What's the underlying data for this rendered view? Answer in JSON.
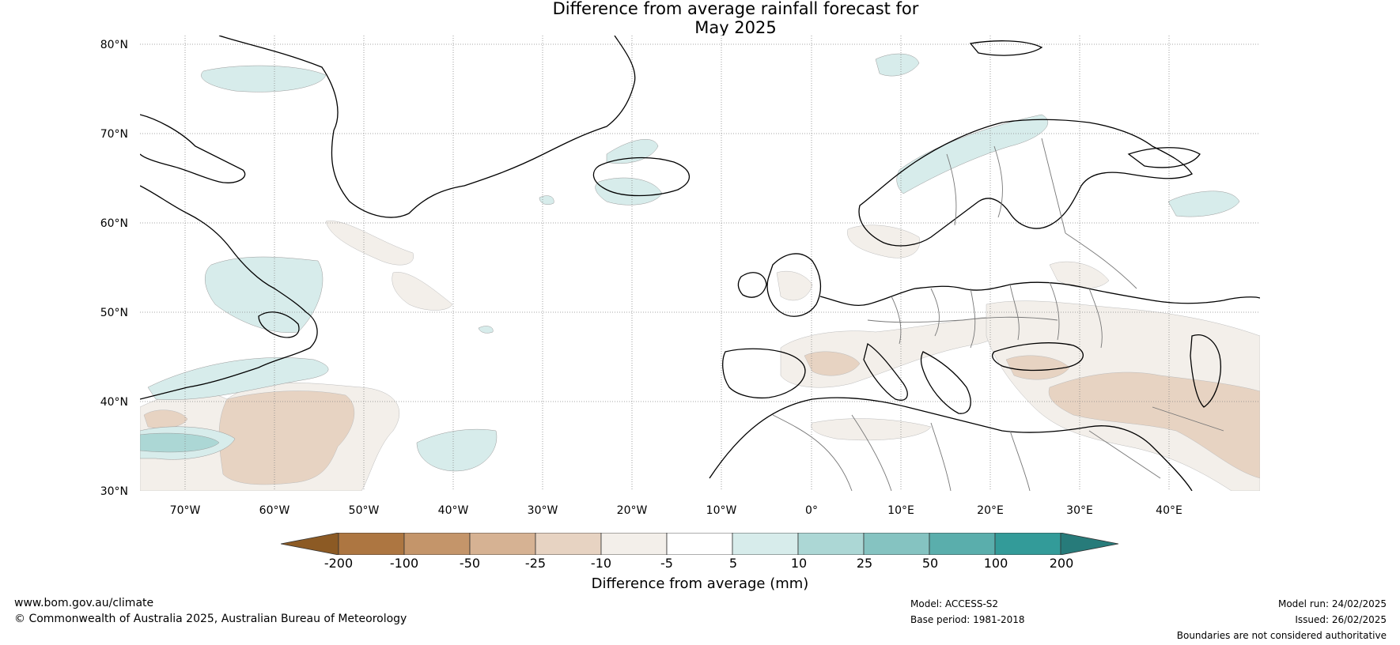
{
  "title": {
    "line1": "Difference from average rainfall forecast for",
    "line2": "May 2025"
  },
  "map": {
    "lat_labels": [
      "80°N",
      "70°N",
      "60°N",
      "50°N",
      "40°N",
      "30°N"
    ],
    "lon_labels": [
      "70°W",
      "60°W",
      "50°W",
      "40°W",
      "30°W",
      "20°W",
      "10°W",
      "0°",
      "10°E",
      "20°E",
      "30°E",
      "40°E"
    ],
    "extent": {
      "lon_min": -75,
      "lon_max": 50,
      "lat_min": 30,
      "lat_max": 81
    }
  },
  "legend": {
    "ticks": [
      "-200",
      "-100",
      "-50",
      "-25",
      "-10",
      "-5",
      "5",
      "10",
      "25",
      "50",
      "100",
      "200"
    ],
    "label": "Difference from average (mm)",
    "colors": [
      "#8c5a24",
      "#ad7641",
      "#c4956a",
      "#d6b293",
      "#e7d3c2",
      "#f3efea",
      "#ffffff",
      "#d7eceb",
      "#acd7d5",
      "#85c3c1",
      "#5aaeac",
      "#339b99",
      "#277b7a"
    ]
  },
  "footer": {
    "website": "www.bom.gov.au/climate",
    "copyright": "© Commonwealth of Australia 2025, Australian Bureau of Meteorology",
    "model": "Model: ACCESS-S2",
    "base_period": "Base period: 1981-2018",
    "model_run": "Model run: 24/02/2025",
    "issued": "Issued: 26/02/2025",
    "disclaimer": "Boundaries are not considered authoritative"
  }
}
